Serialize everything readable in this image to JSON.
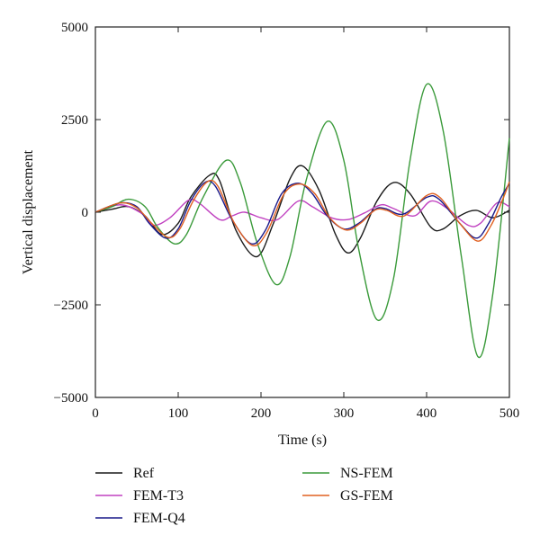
{
  "chart_data": {
    "type": "line",
    "title": "",
    "xlabel": "Time (s)",
    "ylabel": "Vertical displacement",
    "xlim": [
      0,
      500
    ],
    "ylim": [
      -5000,
      5000
    ],
    "xticks": [
      0,
      100,
      200,
      300,
      400,
      500
    ],
    "xtick_labels": [
      "0",
      "100",
      "200",
      "300",
      "400",
      "500"
    ],
    "yticks": [
      5000,
      2500,
      0,
      -2500,
      -5000
    ],
    "ytick_labels": [
      "5000",
      "2500",
      "0",
      "−2500",
      "−5000"
    ],
    "grid": false,
    "legend_position": "below plot",
    "series": [
      {
        "name": "Ref",
        "color": "#1a1a1a",
        "points": [
          [
            0,
            0
          ],
          [
            20,
            80
          ],
          [
            40,
            150
          ],
          [
            60,
            -100
          ],
          [
            80,
            -600
          ],
          [
            100,
            -300
          ],
          [
            115,
            400
          ],
          [
            138,
            1000
          ],
          [
            150,
            850
          ],
          [
            170,
            -500
          ],
          [
            195,
            -1200
          ],
          [
            215,
            -300
          ],
          [
            235,
            900
          ],
          [
            250,
            1250
          ],
          [
            270,
            600
          ],
          [
            290,
            -600
          ],
          [
            305,
            -1100
          ],
          [
            320,
            -700
          ],
          [
            340,
            300
          ],
          [
            360,
            800
          ],
          [
            380,
            500
          ],
          [
            405,
            -400
          ],
          [
            420,
            -450
          ],
          [
            440,
            -100
          ],
          [
            460,
            50
          ],
          [
            480,
            -150
          ],
          [
            500,
            50
          ]
        ]
      },
      {
        "name": "FEM-T3",
        "color": "#c040c0",
        "points": [
          [
            0,
            0
          ],
          [
            30,
            200
          ],
          [
            55,
            -20
          ],
          [
            70,
            -350
          ],
          [
            90,
            -150
          ],
          [
            112,
            320
          ],
          [
            125,
            250
          ],
          [
            150,
            -200
          ],
          [
            165,
            -100
          ],
          [
            180,
            0
          ],
          [
            200,
            -150
          ],
          [
            220,
            -200
          ],
          [
            245,
            300
          ],
          [
            262,
            150
          ],
          [
            285,
            -150
          ],
          [
            305,
            -200
          ],
          [
            325,
            -20
          ],
          [
            345,
            200
          ],
          [
            360,
            100
          ],
          [
            385,
            -100
          ],
          [
            405,
            300
          ],
          [
            425,
            100
          ],
          [
            450,
            -350
          ],
          [
            465,
            -300
          ],
          [
            485,
            250
          ],
          [
            500,
            150
          ]
        ]
      },
      {
        "name": "FEM-Q4",
        "color": "#1a1a8a",
        "points": [
          [
            0,
            0
          ],
          [
            30,
            250
          ],
          [
            50,
            150
          ],
          [
            65,
            -300
          ],
          [
            85,
            -700
          ],
          [
            100,
            -450
          ],
          [
            115,
            300
          ],
          [
            132,
            800
          ],
          [
            145,
            700
          ],
          [
            165,
            -200
          ],
          [
            188,
            -850
          ],
          [
            205,
            -500
          ],
          [
            225,
            500
          ],
          [
            245,
            780
          ],
          [
            262,
            500
          ],
          [
            280,
            -100
          ],
          [
            300,
            -450
          ],
          [
            318,
            -300
          ],
          [
            338,
            80
          ],
          [
            350,
            100
          ],
          [
            372,
            -50
          ],
          [
            400,
            400
          ],
          [
            415,
            350
          ],
          [
            440,
            -300
          ],
          [
            460,
            -700
          ],
          [
            475,
            -300
          ],
          [
            490,
            400
          ],
          [
            500,
            780
          ]
        ]
      },
      {
        "name": "NS-FEM",
        "color": "#3a9a3a",
        "points": [
          [
            0,
            0
          ],
          [
            20,
            150
          ],
          [
            40,
            350
          ],
          [
            60,
            150
          ],
          [
            75,
            -400
          ],
          [
            95,
            -850
          ],
          [
            110,
            -600
          ],
          [
            130,
            400
          ],
          [
            158,
            1400
          ],
          [
            175,
            800
          ],
          [
            195,
            -800
          ],
          [
            218,
            -1950
          ],
          [
            235,
            -1200
          ],
          [
            255,
            900
          ],
          [
            280,
            2450
          ],
          [
            300,
            1400
          ],
          [
            318,
            -1000
          ],
          [
            340,
            -2900
          ],
          [
            360,
            -1800
          ],
          [
            380,
            1400
          ],
          [
            400,
            3450
          ],
          [
            420,
            2200
          ],
          [
            442,
            -1200
          ],
          [
            462,
            -3900
          ],
          [
            480,
            -2200
          ],
          [
            500,
            2000
          ]
        ]
      },
      {
        "name": "GS-FEM",
        "color": "#e06020",
        "points": [
          [
            0,
            0
          ],
          [
            30,
            250
          ],
          [
            50,
            120
          ],
          [
            68,
            -300
          ],
          [
            88,
            -680
          ],
          [
            102,
            -450
          ],
          [
            118,
            300
          ],
          [
            135,
            820
          ],
          [
            148,
            700
          ],
          [
            168,
            -300
          ],
          [
            190,
            -900
          ],
          [
            207,
            -550
          ],
          [
            228,
            500
          ],
          [
            247,
            760
          ],
          [
            265,
            500
          ],
          [
            283,
            -150
          ],
          [
            303,
            -480
          ],
          [
            320,
            -300
          ],
          [
            338,
            60
          ],
          [
            352,
            50
          ],
          [
            373,
            -100
          ],
          [
            400,
            450
          ],
          [
            416,
            400
          ],
          [
            440,
            -300
          ],
          [
            462,
            -780
          ],
          [
            478,
            -350
          ],
          [
            492,
            350
          ],
          [
            500,
            820
          ]
        ]
      }
    ]
  }
}
